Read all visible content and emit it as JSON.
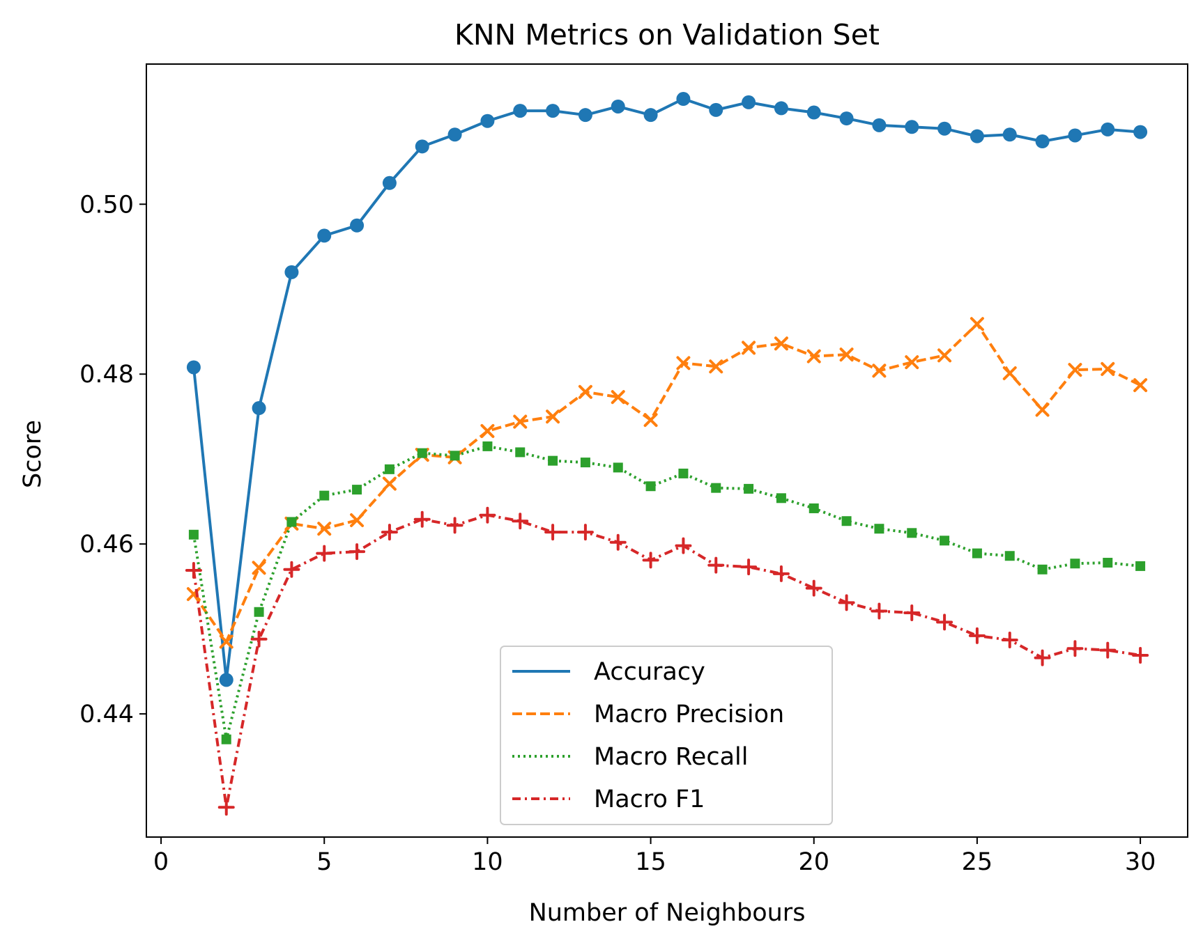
{
  "chart_data": {
    "type": "line",
    "title": "KNN Metrics on Validation Set",
    "xlabel": "Number of Neighbours",
    "ylabel": "Score",
    "xlim": [
      -0.45,
      31.45
    ],
    "ylim": [
      0.4255,
      0.5165
    ],
    "xticks": [
      0,
      5,
      10,
      15,
      20,
      25,
      30
    ],
    "xtick_labels": [
      "0",
      "5",
      "10",
      "15",
      "20",
      "25",
      "30"
    ],
    "yticks": [
      0.44,
      0.46,
      0.48,
      0.5
    ],
    "ytick_labels": [
      "0.44",
      "0.46",
      "0.48",
      "0.50"
    ],
    "grid": false,
    "legend_position": "lower center",
    "x": [
      1,
      2,
      3,
      4,
      5,
      6,
      7,
      8,
      9,
      10,
      11,
      12,
      13,
      14,
      15,
      16,
      17,
      18,
      19,
      20,
      21,
      22,
      23,
      24,
      25,
      26,
      27,
      28,
      29,
      30
    ],
    "series": [
      {
        "name": "Accuracy",
        "color": "#1f77b4",
        "linestyle": "solid",
        "marker": "circle",
        "values": [
          0.4808,
          0.444,
          0.476,
          0.492,
          0.4963,
          0.4975,
          0.5025,
          0.5068,
          0.5082,
          0.5098,
          0.511,
          0.511,
          0.5105,
          0.5115,
          0.5105,
          0.5124,
          0.5111,
          0.512,
          0.5113,
          0.5108,
          0.5101,
          0.5093,
          0.5091,
          0.5089,
          0.508,
          0.5082,
          0.5074,
          0.5081,
          0.5088,
          0.5085
        ]
      },
      {
        "name": "Macro Precision",
        "color": "#ff7f0e",
        "linestyle": "dashed",
        "marker": "x",
        "values": [
          0.4541,
          0.4485,
          0.4572,
          0.4624,
          0.4618,
          0.4628,
          0.4671,
          0.4705,
          0.4702,
          0.4733,
          0.4744,
          0.475,
          0.4779,
          0.4773,
          0.4746,
          0.4813,
          0.4809,
          0.4831,
          0.4836,
          0.4821,
          0.4823,
          0.4804,
          0.4814,
          0.4822,
          0.4859,
          0.4801,
          0.4758,
          0.4805,
          0.4806,
          0.4787
        ]
      },
      {
        "name": "Macro Recall",
        "color": "#2ca02c",
        "linestyle": "dotted",
        "marker": "square",
        "values": [
          0.4611,
          0.437,
          0.452,
          0.4626,
          0.4657,
          0.4664,
          0.4688,
          0.4707,
          0.4704,
          0.4715,
          0.4708,
          0.4698,
          0.4696,
          0.469,
          0.4668,
          0.4683,
          0.4666,
          0.4665,
          0.4654,
          0.4642,
          0.4627,
          0.4618,
          0.4613,
          0.4604,
          0.4589,
          0.4586,
          0.457,
          0.4577,
          0.4578,
          0.4574
        ]
      },
      {
        "name": "Macro F1",
        "color": "#d62728",
        "linestyle": "dashdot",
        "marker": "plus",
        "values": [
          0.4569,
          0.429,
          0.4488,
          0.457,
          0.4589,
          0.4591,
          0.4614,
          0.4629,
          0.4622,
          0.4634,
          0.4627,
          0.4614,
          0.4614,
          0.4602,
          0.4581,
          0.4598,
          0.4575,
          0.4573,
          0.4565,
          0.4548,
          0.4531,
          0.4521,
          0.4519,
          0.4508,
          0.4492,
          0.4487,
          0.4466,
          0.4477,
          0.4475,
          0.4469
        ]
      }
    ]
  }
}
